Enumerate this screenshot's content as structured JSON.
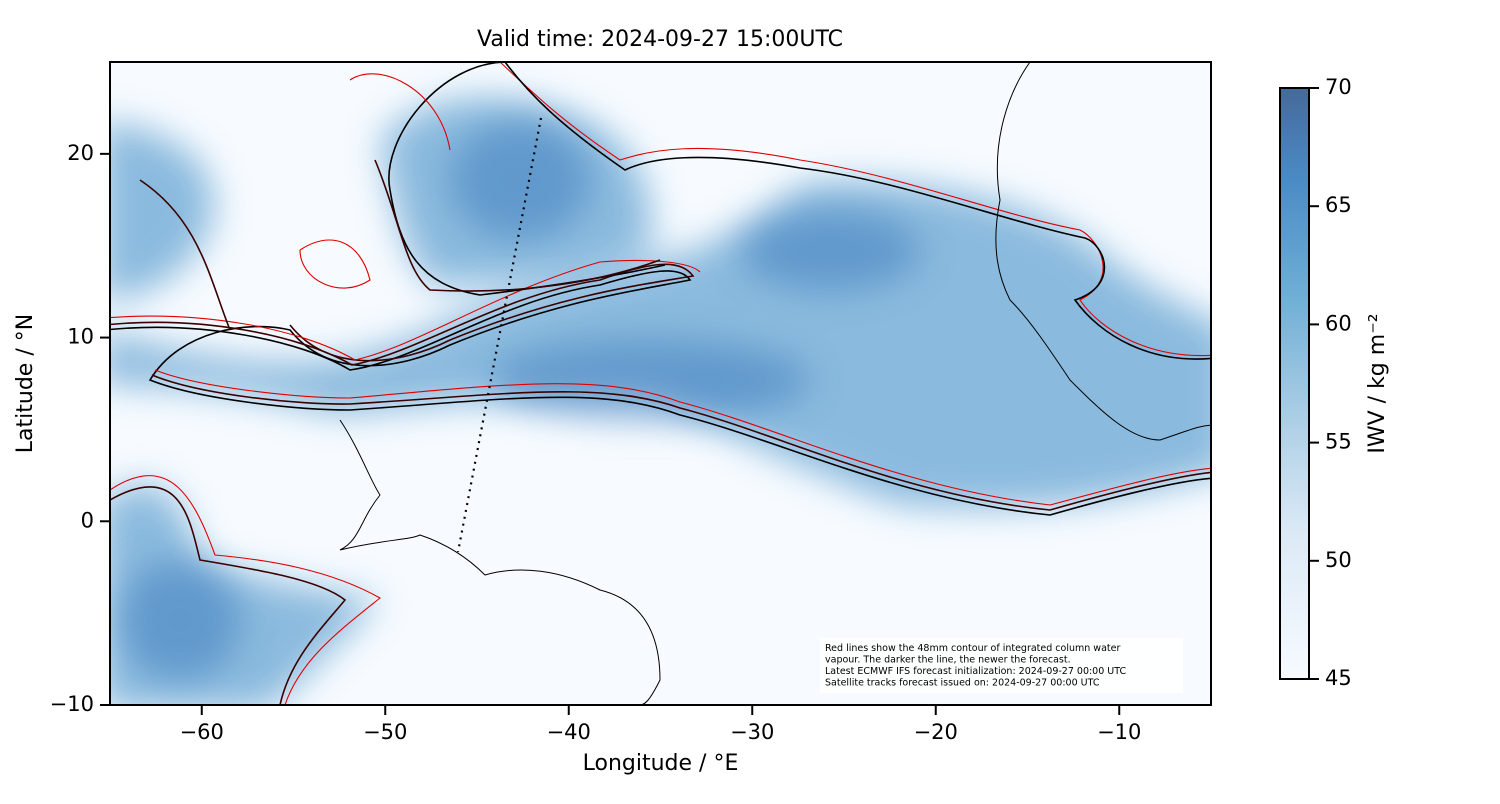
{
  "chart_data": {
    "type": "map",
    "title": "Valid time: 2024-09-27 15:00UTC",
    "x_label": "Longitude / °E",
    "y_label": "Latitude / °N",
    "xlim": [
      -65,
      -5
    ],
    "ylim": [
      -10,
      25
    ],
    "xticks": [
      {
        "value": -60,
        "label": "−60"
      },
      {
        "value": -50,
        "label": "−50"
      },
      {
        "value": -40,
        "label": "−40"
      },
      {
        "value": -30,
        "label": "−30"
      },
      {
        "value": -20,
        "label": "−20"
      },
      {
        "value": -10,
        "label": "−10"
      }
    ],
    "yticks": [
      {
        "value": -10,
        "label": "−10"
      },
      0,
      10,
      20
    ],
    "colorbar": {
      "label": "IWV / kg m⁻²",
      "lim": [
        45,
        70
      ],
      "ticks": [
        45,
        50,
        55,
        60,
        65,
        70
      ]
    },
    "annotation": [
      "Red lines show the 48mm contour of integrated column water",
      "vapour. The darker the line, the newer the forecast.",
      "Latest ECMWF IFS forecast initialization: 2024-09-27 00:00 UTC",
      "Satellite tracks forecast issued on: 2024-09-27 00:00 UTC"
    ]
  }
}
